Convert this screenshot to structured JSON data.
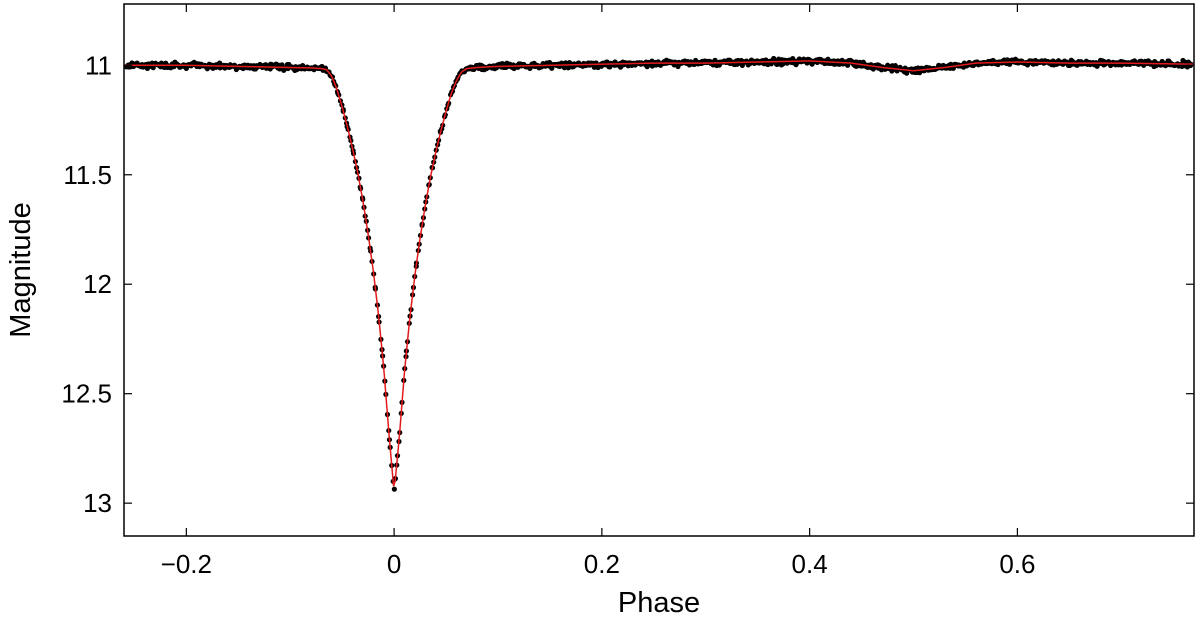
{
  "chart_data": {
    "type": "scatter",
    "title": "",
    "xlabel": "Phase",
    "ylabel": "Magnitude",
    "xlim": [
      -0.26,
      0.77
    ],
    "ylim": [
      13.15,
      10.72
    ],
    "y_inverted": true,
    "x_ticks": [
      -0.2,
      0,
      0.2,
      0.4,
      0.6
    ],
    "x_tick_labels": [
      "−0.2",
      "0",
      "0.2",
      "0.4",
      "0.6"
    ],
    "y_ticks": [
      11,
      11.5,
      12,
      12.5,
      13
    ],
    "y_tick_labels": [
      "11",
      "11.5",
      "12",
      "12.5",
      "13"
    ],
    "grid": false,
    "legend": "none",
    "colors": {
      "points": "#000000",
      "model": "#e31a1c",
      "axes": "#000000"
    },
    "model_curve": {
      "name": "",
      "x": [
        -0.26,
        -0.2,
        -0.15,
        -0.1,
        -0.08,
        -0.07,
        -0.065,
        -0.06,
        -0.055,
        -0.05,
        -0.045,
        -0.04,
        -0.035,
        -0.03,
        -0.025,
        -0.02,
        -0.015,
        -0.01,
        -0.005,
        0,
        0.005,
        0.01,
        0.015,
        0.02,
        0.025,
        0.03,
        0.035,
        0.04,
        0.045,
        0.05,
        0.055,
        0.06,
        0.065,
        0.07,
        0.08,
        0.1,
        0.15,
        0.2,
        0.25,
        0.3,
        0.35,
        0.4,
        0.44,
        0.47,
        0.5,
        0.53,
        0.56,
        0.6,
        0.65,
        0.7,
        0.77
      ],
      "y": [
        11.0,
        11.0,
        11.005,
        11.01,
        11.012,
        11.015,
        11.02,
        11.05,
        11.11,
        11.19,
        11.28,
        11.38,
        11.49,
        11.62,
        11.77,
        11.94,
        12.14,
        12.38,
        12.68,
        12.95,
        12.7,
        12.4,
        12.16,
        11.96,
        11.79,
        11.64,
        11.51,
        11.4,
        11.3,
        11.21,
        11.13,
        11.07,
        11.03,
        11.015,
        11.01,
        11.005,
        11.0,
        10.995,
        10.99,
        10.99,
        10.985,
        10.98,
        10.99,
        11.01,
        11.025,
        11.01,
        10.99,
        10.985,
        10.99,
        10.99,
        10.995
      ]
    },
    "observations": {
      "name": "",
      "count_description": "dense phase-folded photometry, approx. 1100 points",
      "scatter_mag": 0.012,
      "sample_points": [
        [
          -0.25,
          10.98
        ],
        [
          -0.22,
          11.0
        ],
        [
          -0.2,
          10.99
        ],
        [
          -0.15,
          11.0
        ],
        [
          -0.1,
          11.01
        ],
        [
          -0.065,
          11.02
        ],
        [
          -0.05,
          11.2
        ],
        [
          -0.03,
          11.62
        ],
        [
          -0.015,
          12.15
        ],
        [
          -0.005,
          12.7
        ],
        [
          0,
          12.96
        ],
        [
          0.005,
          12.7
        ],
        [
          0.015,
          12.15
        ],
        [
          0.03,
          11.65
        ],
        [
          0.05,
          11.2
        ],
        [
          0.07,
          11.01
        ],
        [
          0.15,
          11.0
        ],
        [
          0.3,
          10.98
        ],
        [
          0.5,
          11.03
        ],
        [
          0.55,
          10.99
        ],
        [
          0.7,
          10.99
        ],
        [
          0.76,
          11.0
        ]
      ]
    }
  }
}
